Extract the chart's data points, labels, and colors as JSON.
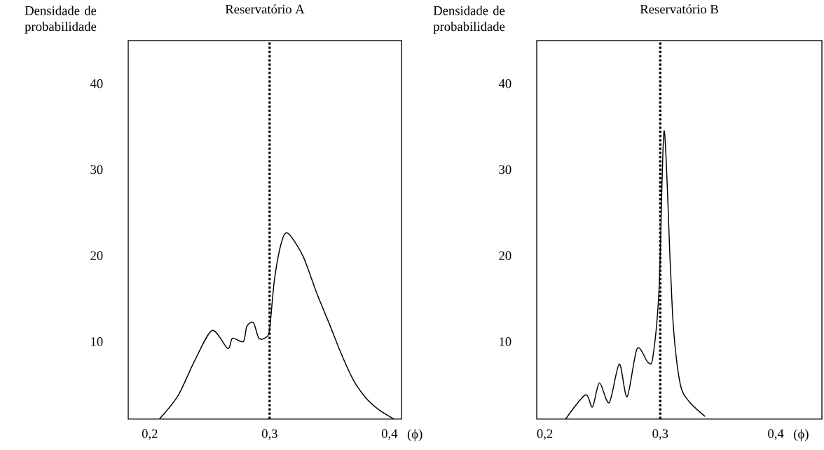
{
  "chart_data": [
    {
      "type": "line",
      "title": "Reservatório A",
      "ylabel": "Densidade de probabilidade",
      "xlabel": "(ϕ)",
      "xlim": [
        0.182,
        0.41
      ],
      "ylim": [
        1,
        45
      ],
      "xticks": [
        {
          "value": 0.2,
          "label": "0,2"
        },
        {
          "value": 0.3,
          "label": "0,3"
        },
        {
          "value": 0.4,
          "label": "0,4"
        }
      ],
      "yticks": [
        10,
        20,
        30,
        40
      ],
      "ref_lines": [
        {
          "axis": "x",
          "value": 0.3,
          "line_style": "dotted",
          "color": "#000000"
        }
      ],
      "series": [
        {
          "color": "#000000",
          "x": [
            0.208,
            0.2235,
            0.2375,
            0.252,
            0.265,
            0.269,
            0.278,
            0.281,
            0.2865,
            0.291,
            0.297,
            0.3,
            0.304,
            0.31,
            0.3153,
            0.3276,
            0.3394,
            0.35,
            0.36,
            0.37,
            0.38,
            0.39,
            0.4,
            0.404
          ],
          "values": [
            1.0,
            3.7,
            7.8,
            11.3,
            9.2,
            10.4,
            10.0,
            11.8,
            12.2,
            10.4,
            10.5,
            11.5,
            17.2,
            21.6,
            22.6,
            20.0,
            15.6,
            12,
            8.5,
            5.5,
            3.5,
            2.2,
            1.3,
            1.0
          ]
        }
      ]
    },
    {
      "type": "line",
      "title": "Reservatório B",
      "ylabel": "Densidade de probabilidade",
      "xlabel": "(ϕ)",
      "xlim": [
        0.193,
        0.44
      ],
      "ylim": [
        1,
        45
      ],
      "xticks": [
        {
          "value": 0.2,
          "label": "0,2"
        },
        {
          "value": 0.3,
          "label": "0,3"
        },
        {
          "value": 0.4,
          "label": "0,4"
        }
      ],
      "yticks": [
        10,
        20,
        30,
        40
      ],
      "ref_lines": [
        {
          "axis": "x",
          "value": 0.3,
          "line_style": "dotted",
          "color": "#000000"
        }
      ],
      "series": [
        {
          "color": "#000000",
          "x": [
            0.218,
            0.2351,
            0.2413,
            0.2473,
            0.2558,
            0.2645,
            0.2713,
            0.28,
            0.2893,
            0.2936,
            0.299,
            0.3033,
            0.3087,
            0.3116,
            0.3174,
            0.3252,
            0.3388
          ],
          "values": [
            1.0,
            3.8,
            2.4,
            5.2,
            2.9,
            7.4,
            3.6,
            9.2,
            7.6,
            8.2,
            16.2,
            34.5,
            18.9,
            11.3,
            5.0,
            3.0,
            1.3
          ]
        }
      ]
    }
  ]
}
